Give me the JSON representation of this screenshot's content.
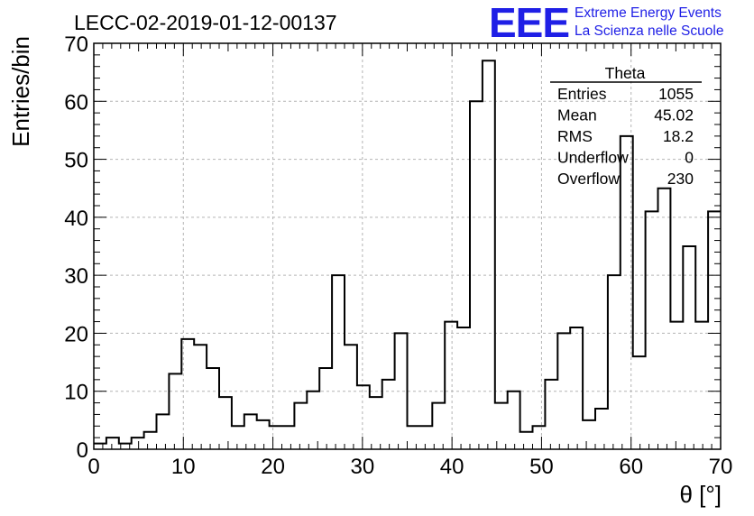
{
  "header": {
    "title": "LECC-02-2019-01-12-00137",
    "logo_mark": "EEE",
    "logo_line1": "Extreme Energy Events",
    "logo_line2": "La Scienza nelle Scuole"
  },
  "stats_box": {
    "title": "Theta",
    "rows": [
      {
        "label": "Entries",
        "value": "1055"
      },
      {
        "label": "Mean",
        "value": "45.02"
      },
      {
        "label": "RMS",
        "value": "18.2"
      },
      {
        "label": "Underflow",
        "value": "0"
      },
      {
        "label": "Overflow",
        "value": "230"
      }
    ]
  },
  "colors": {
    "logo": "#1f1fe6",
    "line": "#000000",
    "grid": "#b4b4b4"
  },
  "chart_data": {
    "type": "histogram",
    "title": "LECC-02-2019-01-12-00137",
    "xlabel": "θ [°]",
    "ylabel": "Entries/bin",
    "xlim": [
      0,
      70
    ],
    "ylim": [
      0,
      70
    ],
    "bin_width": 1.4,
    "bin_edges_start": 0,
    "grid": true,
    "x_ticks": [
      0,
      10,
      20,
      30,
      40,
      50,
      60,
      70
    ],
    "y_ticks": [
      0,
      10,
      20,
      30,
      40,
      50,
      60,
      70
    ],
    "counts": [
      1,
      2,
      1,
      2,
      3,
      6,
      13,
      19,
      18,
      14,
      9,
      4,
      6,
      5,
      4,
      4,
      8,
      10,
      14,
      30,
      18,
      11,
      9,
      12,
      20,
      4,
      4,
      8,
      22,
      21,
      60,
      67,
      8,
      10,
      3,
      4,
      12,
      20,
      21,
      5,
      7,
      30,
      54,
      16,
      41,
      45,
      22,
      35,
      22,
      41
    ]
  }
}
